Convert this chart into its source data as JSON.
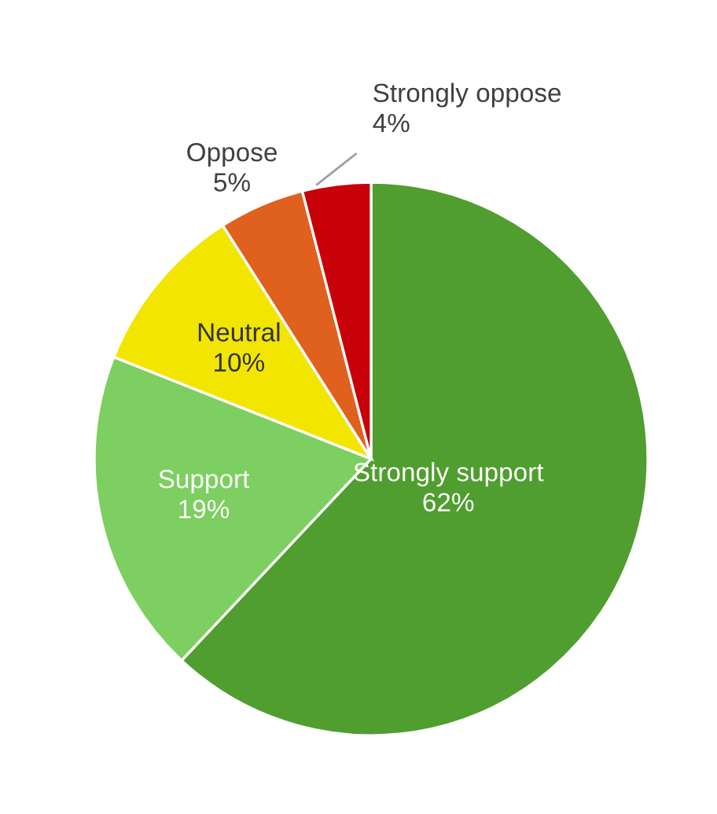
{
  "chart_data": {
    "type": "pie",
    "categories": [
      "Strongly support",
      "Support",
      "Neutral",
      "Oppose",
      "Strongly oppose"
    ],
    "values": [
      62,
      19,
      10,
      5,
      4
    ],
    "colors": [
      "#4f9e2f",
      "#7ccf60",
      "#f2e600",
      "#e0601e",
      "#c8000a"
    ],
    "value_labels": [
      "62%",
      "19%",
      "10%",
      "5%",
      "4%"
    ],
    "legend": false
  }
}
